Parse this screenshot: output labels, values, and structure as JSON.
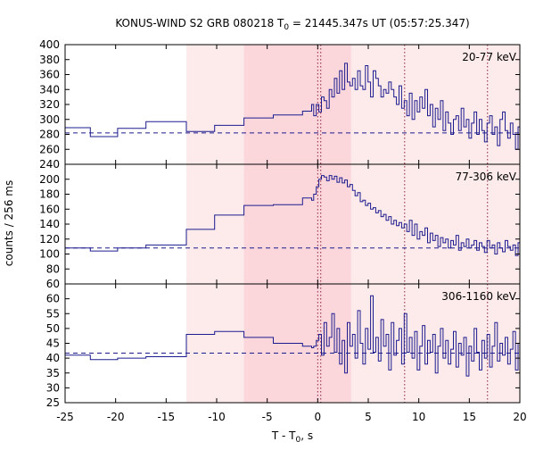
{
  "chart_data": {
    "type": "line",
    "title": "KONUS-WIND S2 GRB 080218 T",
    "title_sub": "0",
    "title_rest": " = 21445.347s UT (05:57:25.347)",
    "xlabel": "T - T",
    "xlabel_sub": "0",
    "xlabel_rest": ", s",
    "ylabel": "counts / 256 ms",
    "xlim": [
      -25,
      20
    ],
    "x_ticks": [
      -25,
      -20,
      -15,
      -10,
      -5,
      0,
      5,
      10,
      15,
      20
    ],
    "x_tick_labels": [
      "-25",
      "-20",
      "-15",
      "-10",
      "-5",
      "0",
      "5",
      "10",
      "15",
      "20"
    ],
    "shaded_regions": [
      {
        "x0": -13.0,
        "x1": 20.0,
        "color": "#fdeaea"
      },
      {
        "x0": -7.3,
        "x1": 3.3,
        "color": "#fbd7dc"
      }
    ],
    "vlines": [
      0.0,
      0.3,
      8.6,
      16.8
    ],
    "line_color": "#1c1c8f",
    "panels": [
      {
        "label": "20-77 keV",
        "ylim": [
          240,
          400
        ],
        "y_ticks": [
          240,
          260,
          280,
          300,
          320,
          340,
          360,
          380,
          400
        ],
        "y_tick_labels": [
          "240",
          "260",
          "280",
          "300",
          "320",
          "340",
          "360",
          "380",
          "400"
        ],
        "background": 282,
        "coarse": [
          [
            -25,
            289
          ],
          [
            -22.5,
            277
          ],
          [
            -19.8,
            288
          ],
          [
            -17,
            297
          ],
          [
            -13,
            284
          ],
          [
            -10.2,
            292
          ],
          [
            -7.3,
            302
          ],
          [
            -4.4,
            306
          ],
          [
            -1.5,
            311
          ],
          [
            -0.6,
            320
          ]
        ],
        "fine_start": -0.4,
        "fine_step": 0.256,
        "fine": [
          305,
          320,
          310,
          330,
          325,
          315,
          340,
          330,
          355,
          335,
          365,
          340,
          375,
          350,
          345,
          355,
          340,
          365,
          345,
          340,
          372,
          350,
          330,
          365,
          355,
          345,
          330,
          340,
          335,
          350,
          340,
          330,
          320,
          345,
          315,
          325,
          305,
          335,
          300,
          325,
          310,
          330,
          315,
          340,
          305,
          320,
          290,
          315,
          300,
          325,
          285,
          310,
          295,
          280,
          300,
          305,
          285,
          315,
          290,
          300,
          275,
          295,
          310,
          280,
          300,
          285,
          270,
          295,
          305,
          280,
          290,
          265,
          300,
          310,
          285,
          275,
          295,
          280,
          260,
          290,
          305,
          275,
          285,
          300,
          265,
          280,
          295,
          270,
          285,
          300,
          275,
          290,
          265,
          280,
          295,
          270,
          285,
          260,
          275,
          290,
          280,
          265,
          295,
          275,
          280,
          290,
          300,
          270,
          285,
          275,
          295,
          280,
          265,
          290,
          305,
          275,
          285,
          300,
          270,
          280,
          290,
          275,
          265,
          285,
          300,
          270,
          290,
          280,
          275,
          285,
          295,
          270,
          280,
          265,
          285,
          275,
          290,
          300,
          270,
          285,
          275,
          260,
          290,
          280,
          275,
          285,
          290,
          270,
          280,
          285,
          275,
          295,
          270,
          280,
          285,
          290,
          275,
          265,
          280,
          290,
          285,
          275,
          280,
          270,
          285,
          290,
          275,
          280,
          285,
          270,
          290,
          275,
          280,
          285,
          290,
          270
        ]
      },
      {
        "label": "77-306 keV",
        "ylim": [
          60,
          220
        ],
        "y_ticks": [
          60,
          80,
          100,
          120,
          140,
          160,
          180,
          200
        ],
        "y_tick_labels": [
          "60",
          "80",
          "100",
          "120",
          "140",
          "160",
          "180",
          "200"
        ],
        "background": 108,
        "coarse": [
          [
            -25,
            108
          ],
          [
            -22.5,
            104
          ],
          [
            -19.8,
            108
          ],
          [
            -17,
            112
          ],
          [
            -13,
            133
          ],
          [
            -10.2,
            152
          ],
          [
            -7.3,
            165
          ],
          [
            -4.4,
            166
          ],
          [
            -1.5,
            175
          ],
          [
            -0.6,
            172
          ]
        ],
        "fine_start": -0.4,
        "fine_step": 0.256,
        "fine": [
          180,
          190,
          200,
          205,
          203,
          198,
          205,
          200,
          204,
          196,
          202,
          195,
          199,
          190,
          193,
          185,
          178,
          182,
          170,
          172,
          165,
          168,
          160,
          162,
          155,
          158,
          150,
          153,
          145,
          150,
          140,
          145,
          138,
          142,
          135,
          140,
          130,
          145,
          125,
          140,
          120,
          130,
          125,
          135,
          115,
          128,
          118,
          125,
          110,
          122,
          115,
          120,
          108,
          118,
          112,
          125,
          105,
          115,
          110,
          120,
          108,
          112,
          118,
          105,
          115,
          110,
          102,
          118,
          108,
          112,
          100,
          115,
          108,
          103,
          118,
          110,
          105,
          112,
          98,
          115,
          108,
          110,
          104,
          116,
          100,
          112,
          106,
          110,
          115,
          103,
          108,
          112,
          100,
          118,
          110,
          104,
          112,
          108,
          115,
          102,
          110,
          106,
          112,
          100,
          115,
          108,
          104,
          112,
          110,
          118,
          102,
          108,
          112,
          106,
          110,
          115,
          100,
          108,
          112,
          104,
          118,
          110,
          106,
          112,
          100,
          114,
          108,
          102,
          110,
          116,
          104,
          108,
          112,
          100,
          110,
          114,
          106,
          102,
          112,
          108,
          116,
          104,
          110,
          100,
          112,
          106,
          118,
          108,
          104,
          112,
          110,
          102,
          116,
          108,
          106,
          112,
          100,
          110,
          114,
          104,
          108,
          118,
          112,
          106,
          110,
          102,
          114,
          108,
          112,
          116,
          104,
          110,
          120,
          108,
          112,
          125,
          110,
          118,
          115,
          122,
          110,
          118
        ]
      },
      {
        "label": "306-1160 keV",
        "ylim": [
          25,
          65
        ],
        "y_ticks": [
          25,
          30,
          35,
          40,
          45,
          50,
          55,
          60
        ],
        "y_tick_labels": [
          "25",
          "30",
          "35",
          "40",
          "45",
          "50",
          "55",
          "60"
        ],
        "background": 41.7,
        "coarse": [
          [
            -25,
            41
          ],
          [
            -22.5,
            39.5
          ],
          [
            -19.8,
            40
          ],
          [
            -17,
            40.5
          ],
          [
            -13,
            48
          ],
          [
            -10.2,
            49
          ],
          [
            -7.3,
            47
          ],
          [
            -4.4,
            45
          ],
          [
            -1.5,
            44
          ],
          [
            -0.6,
            43.5
          ]
        ],
        "fine_start": -0.4,
        "fine_step": 0.256,
        "fine": [
          44,
          46,
          48,
          41,
          52,
          44,
          47,
          55,
          42,
          50,
          38,
          46,
          35,
          52,
          44,
          48,
          40,
          56,
          45,
          38,
          50,
          43,
          61,
          42,
          47,
          39,
          53,
          44,
          48,
          36,
          52,
          41,
          46,
          50,
          38,
          55,
          42,
          47,
          40,
          49,
          36,
          44,
          51,
          38,
          46,
          42,
          48,
          35,
          44,
          50,
          40,
          46,
          38,
          43,
          49,
          37,
          45,
          41,
          47,
          34,
          44,
          39,
          50,
          42,
          36,
          46,
          40,
          48,
          37,
          44,
          52,
          39,
          45,
          41,
          47,
          38,
          43,
          49,
          36,
          45,
          40,
          46,
          42,
          38,
          51,
          44,
          39,
          46,
          35,
          43,
          48,
          41,
          37,
          46,
          40,
          44,
          49,
          38,
          42,
          45,
          36,
          47,
          41,
          39,
          44,
          50,
          37,
          43,
          46,
          40,
          34,
          45,
          42,
          48,
          38,
          44,
          41,
          36,
          47,
          43,
          39,
          45,
          40,
          46,
          37,
          42,
          48,
          41,
          44,
          38,
          46,
          40,
          43,
          35,
          47,
          41,
          39,
          45,
          42,
          50,
          38,
          44,
          40,
          46,
          36,
          43,
          41,
          48,
          39,
          45,
          42,
          37,
          44,
          40,
          47,
          38,
          43,
          46,
          29,
          41,
          45,
          39,
          44,
          48,
          36,
          42,
          40,
          46,
          38,
          44,
          41,
          49,
          37,
          45,
          43,
          40,
          51,
          38,
          44,
          42,
          36,
          47,
          41,
          50
        ]
      }
    ]
  }
}
